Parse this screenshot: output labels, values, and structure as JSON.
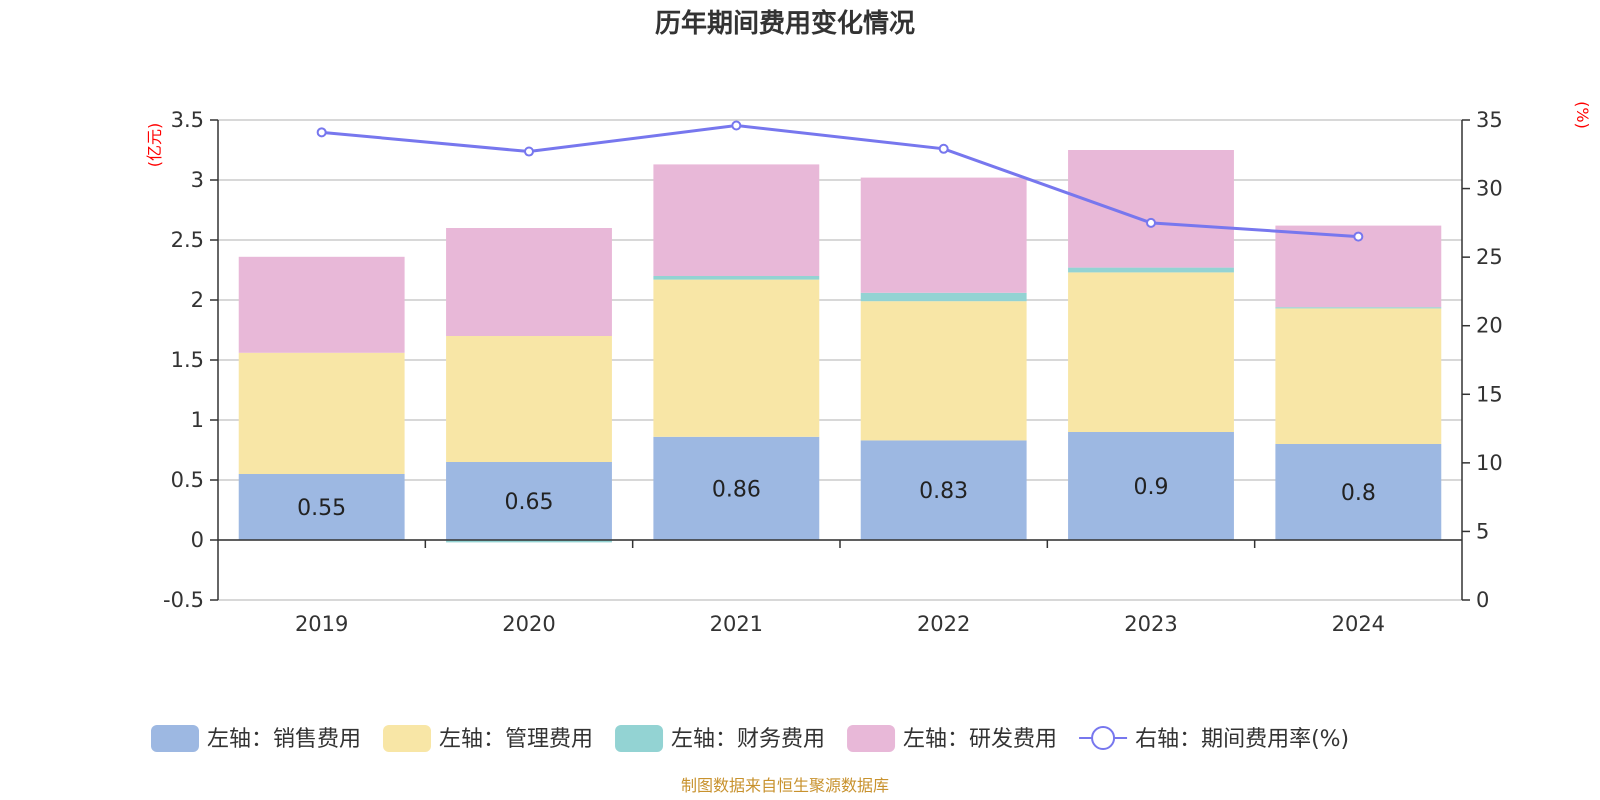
{
  "chart_data": {
    "type": "bar",
    "title": "历年期间费用变化情况",
    "categories": [
      "2019",
      "2020",
      "2021",
      "2022",
      "2023",
      "2024"
    ],
    "series": [
      {
        "name": "左轴：销售费用",
        "axis": "left",
        "color": "#9db8e2",
        "values": [
          0.55,
          0.65,
          0.86,
          0.83,
          0.9,
          0.8
        ]
      },
      {
        "name": "左轴：管理费用",
        "axis": "left",
        "color": "#f8e6a6",
        "values": [
          1.01,
          1.05,
          1.31,
          1.16,
          1.33,
          1.13
        ]
      },
      {
        "name": "左轴：财务费用",
        "axis": "left",
        "color": "#93d3d3",
        "values": [
          0.0,
          -0.02,
          0.03,
          0.07,
          0.04,
          0.01
        ]
      },
      {
        "name": "左轴：研发费用",
        "axis": "left",
        "color": "#e8b8d8",
        "values": [
          0.8,
          0.9,
          0.93,
          0.96,
          0.98,
          0.68
        ]
      },
      {
        "name": "右轴：期间费用率(%)",
        "axis": "right",
        "type": "line",
        "color": "#7777ee",
        "values": [
          34.1,
          32.7,
          34.6,
          32.9,
          27.5,
          26.5
        ]
      }
    ],
    "data_labels_series": "左轴：销售费用",
    "y_left": {
      "unit": "(亿元)",
      "ylim": [
        -0.5,
        3.5
      ],
      "ticks": [
        "-0.5",
        "0",
        "0.5",
        "1",
        "1.5",
        "2",
        "2.5",
        "3",
        "3.5"
      ]
    },
    "y_right": {
      "unit": "(%)",
      "ylim": [
        0,
        35
      ],
      "ticks": [
        "0",
        "5",
        "10",
        "15",
        "20",
        "25",
        "30",
        "35"
      ]
    },
    "grid": true,
    "legend_position": "bottom"
  },
  "source_text": "制图数据来自恒生聚源数据库"
}
